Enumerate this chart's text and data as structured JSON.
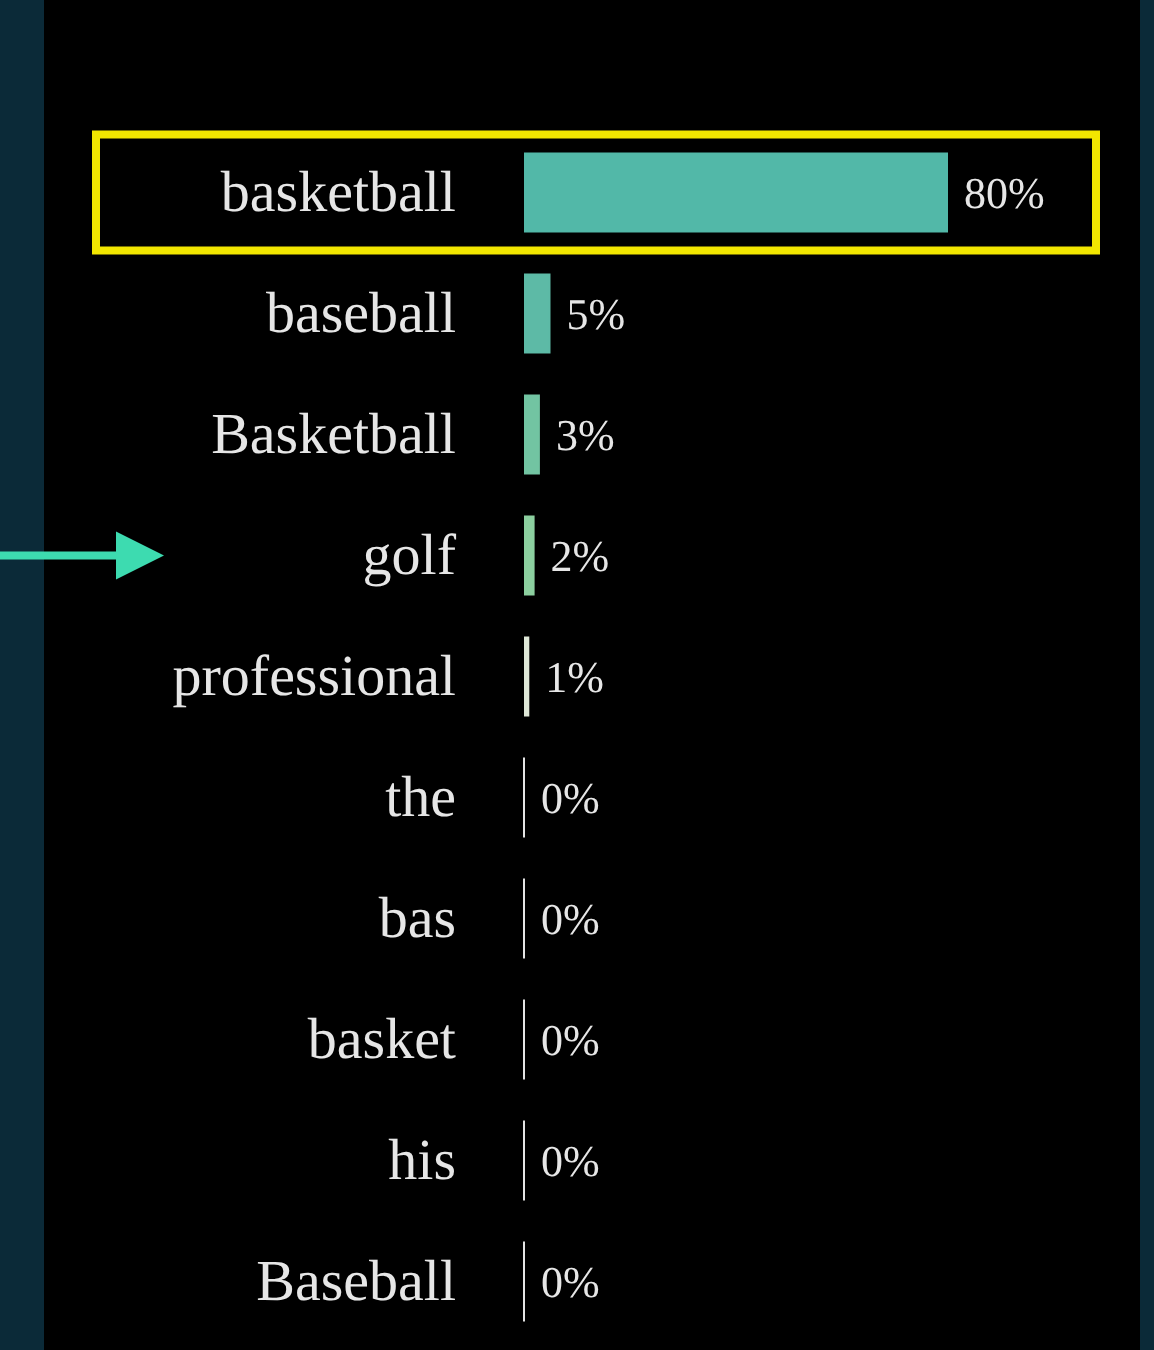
{
  "chart_data": {
    "type": "bar",
    "orientation": "horizontal",
    "categories": [
      "basketball",
      "baseball",
      "Basketball",
      "golf",
      "professional",
      "the",
      "bas",
      "basket",
      "his",
      "Baseball"
    ],
    "values": [
      80,
      5,
      3,
      2,
      1,
      0,
      0,
      0,
      0,
      0
    ],
    "value_labels": [
      "80%",
      "5%",
      "3%",
      "2%",
      "1%",
      "0%",
      "0%",
      "0%",
      "0%",
      "0%"
    ],
    "colors": [
      "#52b8a8",
      "#5dbaa6",
      "#72c4a2",
      "#8ccf9f",
      "#dfe8d8",
      "#e4e4e4",
      "#e4e4e4",
      "#e4e4e4",
      "#e4e4e4",
      "#e4e4e4"
    ]
  }
}
